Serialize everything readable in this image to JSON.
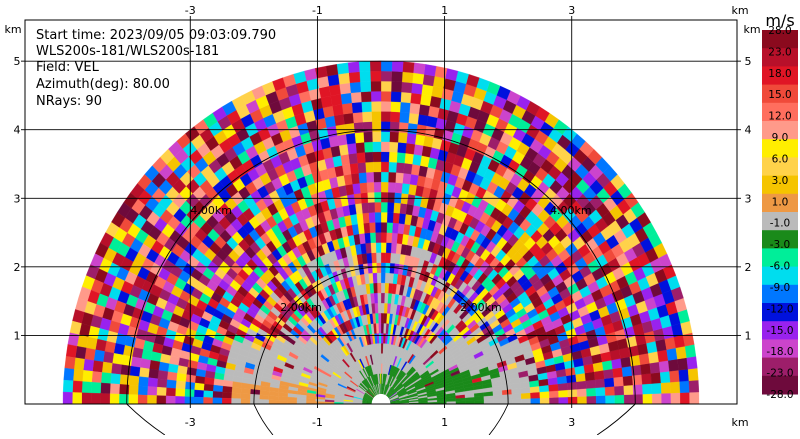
{
  "chart_data": {
    "type": "heatmap",
    "subtype": "radar-rhi-scan",
    "info": {
      "start_time": "Start time: 2023/09/05 09:03:09.790",
      "instrument": "WLS200s-181/WLS200s-181",
      "field": "Field: VEL",
      "azimuth": "Azimuth(deg): 80.00",
      "nrays": "NRays: 90"
    },
    "x_unit": "km",
    "y_unit": "km",
    "xlim": [
      -5.6,
      5.6
    ],
    "ylim": [
      0,
      5.6
    ],
    "x_ticks": [
      -3,
      -1,
      1,
      3
    ],
    "x_tick_labels": [
      "-3",
      "-1",
      "1",
      "3"
    ],
    "y_ticks": [
      1,
      2,
      3,
      4,
      5
    ],
    "y_tick_labels": [
      "1",
      "2",
      "3",
      "4",
      "5"
    ],
    "grid": true,
    "range_rings": [
      {
        "radius_km": 2,
        "label": "2.00km"
      },
      {
        "radius_km": 4,
        "label": "4.00km"
      }
    ],
    "scan_max_range_km": 5.0,
    "colorbar": {
      "unit": "m/s",
      "levels": [
        28.0,
        23.0,
        18.0,
        15.0,
        12.0,
        9.0,
        6.0,
        3.0,
        1.0,
        -1.0,
        -3.0,
        -6.0,
        -9.0,
        -12.0,
        -15.0,
        -18.0,
        -23.0,
        -28.0
      ],
      "level_labels": [
        "28.0",
        "23.0",
        "18.0",
        "15.0",
        "12.0",
        "9.0",
        "6.0",
        "3.0",
        "1.0",
        "-1.0",
        "-3.0",
        "-6.0",
        "-9.0",
        "-12.0",
        "-15.0",
        "-18.0",
        "-23.0",
        "-28.0"
      ],
      "colors": [
        "#8b0a1e",
        "#b8102a",
        "#e01525",
        "#f04a3a",
        "#ff6e5e",
        "#ff9a8a",
        "#ffee00",
        "#ffd24a",
        "#f5c400",
        "#ee9944",
        "#bbbbbb",
        "#1a8a1a",
        "#00ee99",
        "#00ddee",
        "#0077ff",
        "#0011dd",
        "#9922ee",
        "#cc44cc",
        "#9d1e6a",
        "#6e0a3c"
      ]
    }
  }
}
